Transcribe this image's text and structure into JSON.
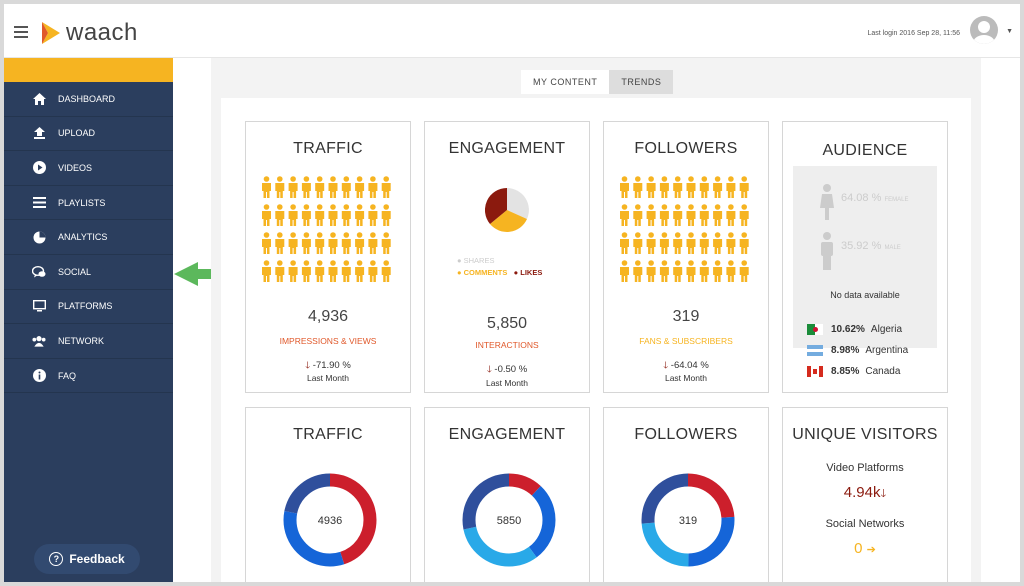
{
  "header": {
    "logo_text": "waach",
    "last_login": "Last login 2016 Sep 28, 11:56"
  },
  "sidebar": {
    "items": [
      {
        "label": "DASHBOARD",
        "icon": "home-icon"
      },
      {
        "label": "UPLOAD",
        "icon": "upload-icon"
      },
      {
        "label": "VIDEOS",
        "icon": "play-icon"
      },
      {
        "label": "PLAYLISTS",
        "icon": "list-icon"
      },
      {
        "label": "ANALYTICS",
        "icon": "pie-chart-icon"
      },
      {
        "label": "SOCIAL",
        "icon": "chat-icon"
      },
      {
        "label": "PLATFORMS",
        "icon": "monitor-icon"
      },
      {
        "label": "NETWORK",
        "icon": "users-icon"
      },
      {
        "label": "FAQ",
        "icon": "info-icon"
      }
    ],
    "feedback_label": "Feedback"
  },
  "tabs": {
    "my_content": "MY CONTENT",
    "trends": "TRENDS"
  },
  "traffic": {
    "title": "TRAFFIC",
    "value": "4,936",
    "label": "IMPRESSIONS & VIEWS",
    "delta": "-71.90 %",
    "period": "Last Month"
  },
  "engagement": {
    "title": "ENGAGEMENT",
    "legend_shares": "SHARES",
    "legend_comments": "COMMENTS",
    "legend_likes": "LIKES",
    "value": "5,850",
    "label": "INTERACTIONS",
    "delta": "-0.50 %",
    "period": "Last Month"
  },
  "followers": {
    "title": "FOLLOWERS",
    "value": "319",
    "label": "FANS & SUBSCRIBERS",
    "delta": "-64.04 %",
    "period": "Last Month"
  },
  "audience": {
    "title": "AUDIENCE",
    "female_pct": "64.08 %",
    "female_label": "FEMALE",
    "male_pct": "35.92 %",
    "male_label": "MALE",
    "no_data": "No data available",
    "countries": [
      {
        "pct": "10.62%",
        "name": "Algeria"
      },
      {
        "pct": "8.98%",
        "name": "Argentina"
      },
      {
        "pct": "8.85%",
        "name": "Canada"
      }
    ]
  },
  "traffic2": {
    "title": "TRAFFIC",
    "center": "4936"
  },
  "engagement2": {
    "title": "ENGAGEMENT",
    "center": "5850"
  },
  "followers2": {
    "title": "FOLLOWERS",
    "center": "319"
  },
  "unique": {
    "title": "UNIQUE VISITORS",
    "video_label": "Video Platforms",
    "video_value": "4.94k",
    "social_label": "Social Networks",
    "social_value": "0"
  },
  "colors": {
    "accent": "#f6b421",
    "sidebar": "#2b3e5e",
    "orange_text": "#e0582a",
    "dark_red": "#8b1a0e",
    "donut_red": "#cc1f2c",
    "donut_blue": "#1565d8",
    "donut_navy": "#2f4f9c",
    "donut_cyan": "#29a9e8"
  }
}
